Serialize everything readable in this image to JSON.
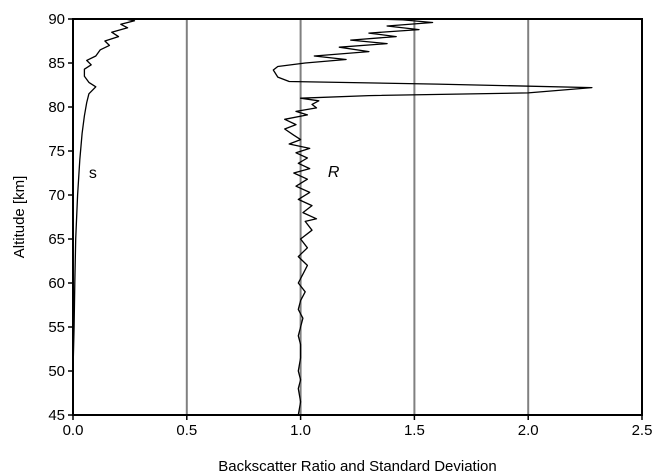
{
  "chart_data": {
    "type": "line",
    "title": "",
    "xlabel": "Backscatter Ratio and Standard Deviation",
    "ylabel": "Altitude [km]",
    "xlim": [
      0.0,
      2.5
    ],
    "ylim": [
      45,
      90
    ],
    "x_ticks": [
      "0.0",
      "0.5",
      "1.0",
      "1.5",
      "2.0",
      "2.5"
    ],
    "y_ticks": [
      "45",
      "50",
      "55",
      "60",
      "65",
      "70",
      "75",
      "80",
      "85",
      "90"
    ],
    "vertical_gridlines_at": [
      0.5,
      1.0,
      1.5,
      2.0
    ],
    "grid_color": "#808080",
    "line_color": "#000000",
    "series": [
      {
        "name": "R",
        "label_position": {
          "x": 1.12,
          "y": 72.6
        },
        "points": [
          [
            0.99,
            45.0
          ],
          [
            1.0,
            46.5
          ],
          [
            0.99,
            48.0
          ],
          [
            1.0,
            49.0
          ],
          [
            0.99,
            50.0
          ],
          [
            1.0,
            51.5
          ],
          [
            1.0,
            53.0
          ],
          [
            0.99,
            54.0
          ],
          [
            1.0,
            55.0
          ],
          [
            1.01,
            56.0
          ],
          [
            0.99,
            57.0
          ],
          [
            1.0,
            58.0
          ],
          [
            1.02,
            59.0
          ],
          [
            0.99,
            60.0
          ],
          [
            1.01,
            61.0
          ],
          [
            1.03,
            62.0
          ],
          [
            0.99,
            63.0
          ],
          [
            1.03,
            64.0
          ],
          [
            1.0,
            65.0
          ],
          [
            1.05,
            66.0
          ],
          [
            1.02,
            67.0
          ],
          [
            1.07,
            67.3
          ],
          [
            1.01,
            68.0
          ],
          [
            1.05,
            68.8
          ],
          [
            0.99,
            69.5
          ],
          [
            1.04,
            70.3
          ],
          [
            0.98,
            71.0
          ],
          [
            1.03,
            71.8
          ],
          [
            0.97,
            72.5
          ],
          [
            1.04,
            73.0
          ],
          [
            0.99,
            73.6
          ],
          [
            1.03,
            74.2
          ],
          [
            0.98,
            74.8
          ],
          [
            1.04,
            75.3
          ],
          [
            0.95,
            75.8
          ],
          [
            1.0,
            76.3
          ],
          [
            0.97,
            76.8
          ],
          [
            0.93,
            77.5
          ],
          [
            0.98,
            78.0
          ],
          [
            0.93,
            78.6
          ],
          [
            1.03,
            79.1
          ],
          [
            0.98,
            79.5
          ],
          [
            1.07,
            79.9
          ],
          [
            1.05,
            80.3
          ],
          [
            1.08,
            80.7
          ],
          [
            1.0,
            81.0
          ],
          [
            1.3,
            81.3
          ],
          [
            2.0,
            81.6
          ],
          [
            2.28,
            82.2
          ],
          [
            1.6,
            82.6
          ],
          [
            0.95,
            82.9
          ],
          [
            0.9,
            83.4
          ],
          [
            0.88,
            84.2
          ],
          [
            0.9,
            84.6
          ],
          [
            1.02,
            85.0
          ],
          [
            1.2,
            85.4
          ],
          [
            1.06,
            85.8
          ],
          [
            1.3,
            86.3
          ],
          [
            1.17,
            86.8
          ],
          [
            1.38,
            87.2
          ],
          [
            1.22,
            87.6
          ],
          [
            1.42,
            88.0
          ],
          [
            1.3,
            88.4
          ],
          [
            1.52,
            88.8
          ],
          [
            1.38,
            89.2
          ],
          [
            1.58,
            89.6
          ],
          [
            1.45,
            89.9
          ],
          [
            1.32,
            90.0
          ]
        ]
      },
      {
        "name": "s",
        "label_position": {
          "x": 0.07,
          "y": 72.5
        },
        "points": [
          [
            0.0,
            45.0
          ],
          [
            0.0,
            50.0
          ],
          [
            0.005,
            55.0
          ],
          [
            0.008,
            60.0
          ],
          [
            0.012,
            65.0
          ],
          [
            0.02,
            70.0
          ],
          [
            0.03,
            74.0
          ],
          [
            0.04,
            77.0
          ],
          [
            0.05,
            79.0
          ],
          [
            0.06,
            80.5
          ],
          [
            0.07,
            81.5
          ],
          [
            0.1,
            82.3
          ],
          [
            0.07,
            82.8
          ],
          [
            0.05,
            83.5
          ],
          [
            0.05,
            84.3
          ],
          [
            0.08,
            84.8
          ],
          [
            0.06,
            85.3
          ],
          [
            0.1,
            85.8
          ],
          [
            0.12,
            86.5
          ],
          [
            0.16,
            87.0
          ],
          [
            0.14,
            87.5
          ],
          [
            0.2,
            88.0
          ],
          [
            0.17,
            88.5
          ],
          [
            0.24,
            89.0
          ],
          [
            0.21,
            89.4
          ],
          [
            0.27,
            89.8
          ],
          [
            0.23,
            90.0
          ]
        ]
      }
    ]
  }
}
